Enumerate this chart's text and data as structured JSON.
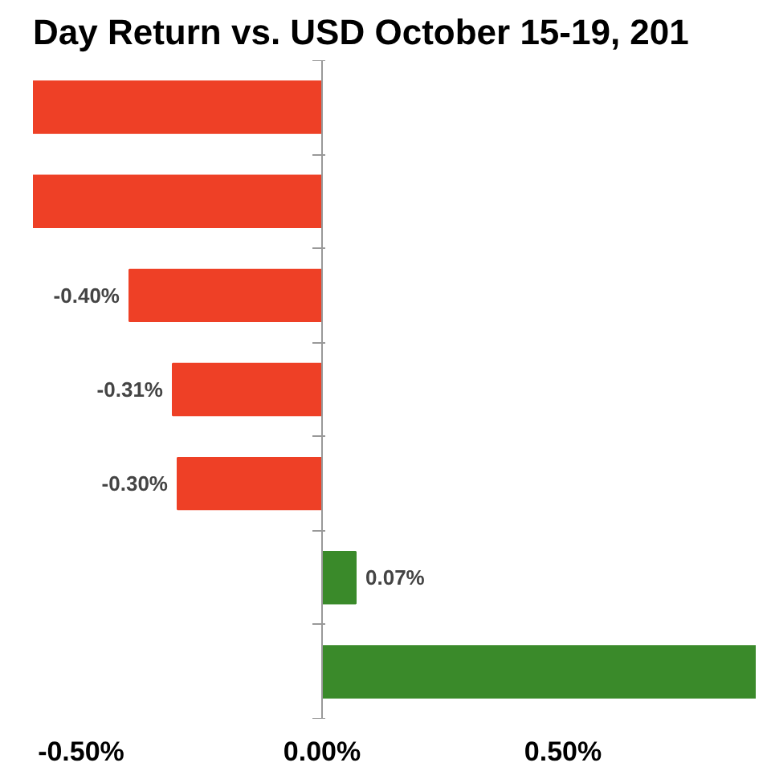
{
  "chart_data": {
    "type": "bar",
    "orientation": "horizontal",
    "title": "Day Return vs. USD October 15-19, 201",
    "categories": [
      null,
      null,
      null,
      null,
      null,
      null,
      null
    ],
    "values": [
      -0.6,
      -0.6,
      -0.4,
      -0.31,
      -0.3,
      0.07,
      0.9
    ],
    "colors": [
      "#ee4026",
      "#ee4026",
      "#ee4026",
      "#ee4026",
      "#ee4026",
      "#3a8a2a",
      "#3a8a2a"
    ],
    "value_labels": [
      null,
      null,
      "-0.40%",
      "-0.31%",
      "-0.30%",
      "0.07%",
      null
    ],
    "xlim": [
      -0.6,
      0.9
    ],
    "xticks": [
      {
        "value": -0.5,
        "label": "-0.50%"
      },
      {
        "value": 0,
        "label": "0.00%"
      },
      {
        "value": 0.5,
        "label": "0.50%"
      }
    ]
  }
}
